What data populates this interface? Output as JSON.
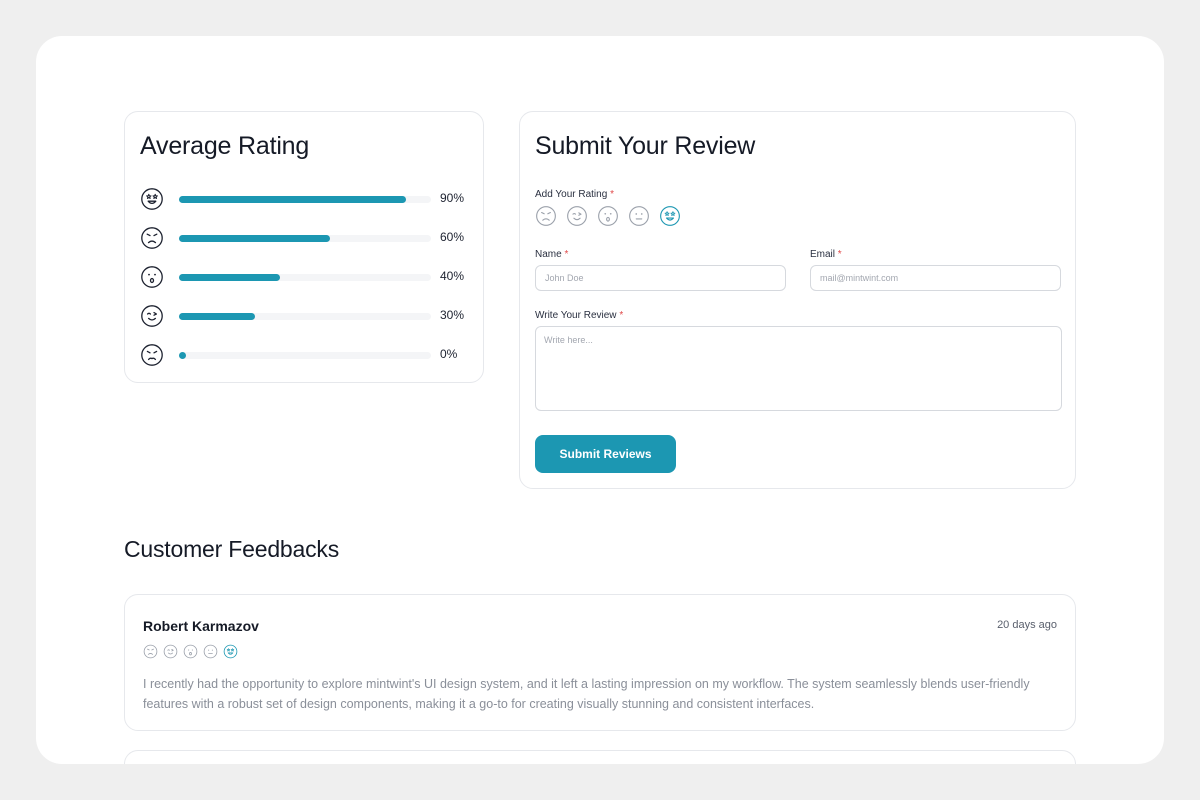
{
  "average_rating": {
    "title": "Average Rating",
    "rows": [
      {
        "icon": "star-eyes-face-icon",
        "value": 90,
        "label": "90%"
      },
      {
        "icon": "angry-face-icon",
        "value": 60,
        "label": "60%"
      },
      {
        "icon": "surprised-face-icon",
        "value": 40,
        "label": "40%"
      },
      {
        "icon": "wink-face-icon",
        "value": 30,
        "label": "30%"
      },
      {
        "icon": "frown-face-icon",
        "value": 0,
        "label": "0%"
      }
    ]
  },
  "submit_review": {
    "title": "Submit Your Review",
    "rating_label": "Add Your Rating",
    "rating_icons": [
      "angry-face-icon",
      "wink-face-icon",
      "surprised-face-icon",
      "neutral-face-icon",
      "star-eyes-face-icon"
    ],
    "selected_rating_icon": "star-eyes-face-icon",
    "name_label": "Name",
    "name_placeholder": "John Doe",
    "email_label": "Email",
    "email_placeholder": "mail@mintwint.com",
    "review_label": "Write Your Review",
    "review_placeholder": "Write here...",
    "required_mark": "*",
    "submit_label": "Submit Reviews"
  },
  "feedbacks": {
    "title": "Customer Feedbacks",
    "items": [
      {
        "name": "Robert Karmazov",
        "date": "20 days ago",
        "rating_icons": [
          "angry-face-icon",
          "wink-face-icon",
          "surprised-face-icon",
          "neutral-face-icon",
          "star-eyes-face-icon"
        ],
        "selected_rating_icon": "star-eyes-face-icon",
        "text": "I recently had the opportunity to explore mintwint's UI design system, and it left a lasting impression on my workflow. The system seamlessly blends user-friendly features with a robust set of design components, making it a go-to for creating visually stunning and consistent interfaces."
      }
    ]
  },
  "colors": {
    "accent": "#1c97b2",
    "required": "#e04848",
    "track": "#f4f5f7",
    "icon_default": "#9aa0aa",
    "icon_dark": "#1d2230"
  }
}
